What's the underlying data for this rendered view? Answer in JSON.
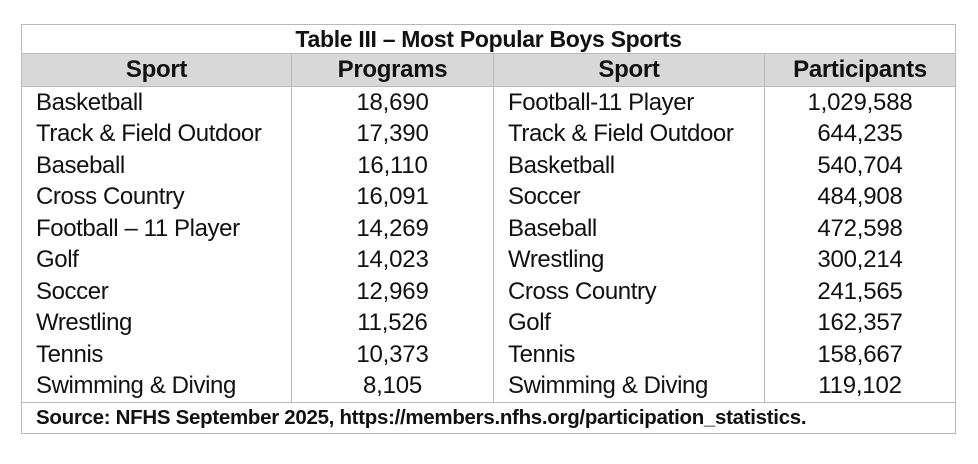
{
  "table": {
    "title": "Table III – Most Popular Boys Sports",
    "headers": {
      "sport_programs": "Sport",
      "programs": "Programs",
      "sport_participants": "Sport",
      "participants": "Participants"
    },
    "rows": [
      {
        "sport_a": "Basketball",
        "programs": "18,690",
        "sport_b": "Football-11 Player",
        "participants": "1,029,588"
      },
      {
        "sport_a": "Track & Field Outdoor",
        "programs": "17,390",
        "sport_b": "Track & Field Outdoor",
        "participants": "644,235"
      },
      {
        "sport_a": "Baseball",
        "programs": "16,110",
        "sport_b": "Basketball",
        "participants": "540,704"
      },
      {
        "sport_a": "Cross Country",
        "programs": "16,091",
        "sport_b": "Soccer",
        "participants": "484,908"
      },
      {
        "sport_a": "Football – 11 Player",
        "programs": "14,269",
        "sport_b": "Baseball",
        "participants": "472,598"
      },
      {
        "sport_a": "Golf",
        "programs": "14,023",
        "sport_b": "Wrestling",
        "participants": "300,214"
      },
      {
        "sport_a": "Soccer",
        "programs": "12,969",
        "sport_b": "Cross Country",
        "participants": "241,565"
      },
      {
        "sport_a": "Wrestling",
        "programs": "11,526",
        "sport_b": "Golf",
        "participants": "162,357"
      },
      {
        "sport_a": "Tennis",
        "programs": "10,373",
        "sport_b": "Tennis",
        "participants": "158,667"
      },
      {
        "sport_a": "Swimming & Diving",
        "programs": "8,105",
        "sport_b": "Swimming & Diving",
        "participants": "119,102"
      }
    ],
    "source": "Source: NFHS September 2025, https://members.nfhs.org/participation_statistics."
  }
}
